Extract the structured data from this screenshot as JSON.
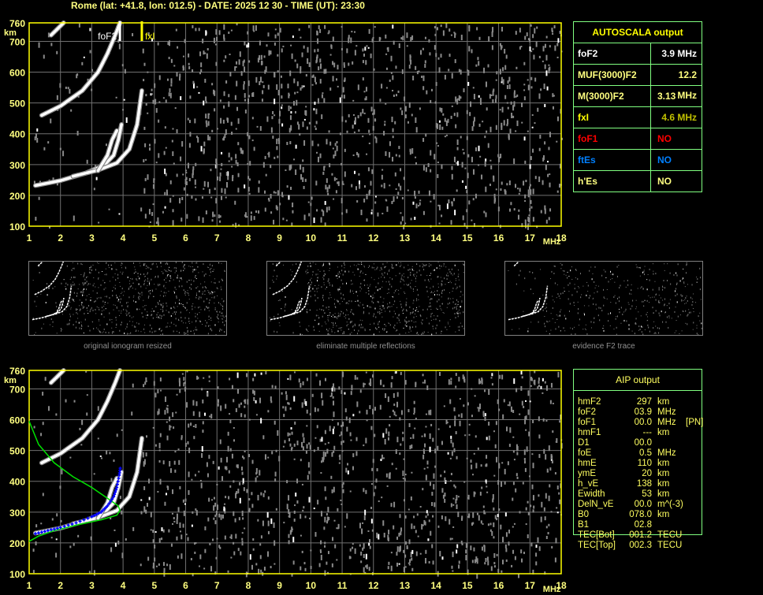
{
  "header": {
    "title": "Rome (lat: +41.8, lon: 012.5) - DATE: 2025 12 30 - TIME (UT): 23:30"
  },
  "autoscala": {
    "title": "AUTOSCALA output",
    "rows": [
      {
        "label": "foF2",
        "value": "3.9 MHz",
        "label_color": "#ffffff",
        "value_color": "#ffffff"
      },
      {
        "label": "MUF(3000)F2",
        "value": "12.2 MHz",
        "label_color": "#ffff80",
        "value_color": "#ffff80"
      },
      {
        "label": "M(3000)F2",
        "value": "3.13",
        "label_color": "#ffff80",
        "value_color": "#ffff80"
      },
      {
        "label": "fxI",
        "value": "4.6 MHz",
        "label_color": "#ffff00",
        "value_color": "#c0c000"
      },
      {
        "label": "foF1",
        "value": "NO",
        "label_color": "#ff0000",
        "value_color": "#ff0000"
      },
      {
        "label": "ftEs",
        "value": "NO",
        "label_color": "#0080ff",
        "value_color": "#0080ff"
      },
      {
        "label": "h'Es",
        "value": "NO",
        "label_color": "#ffff80",
        "value_color": "#ffff80"
      }
    ]
  },
  "aip": {
    "title": "AIP output",
    "rows": [
      {
        "name": "hmF2",
        "value": "297",
        "unit": "km",
        "extra": ""
      },
      {
        "name": "foF2",
        "value": "03.9",
        "unit": "MHz",
        "extra": ""
      },
      {
        "name": "foF1",
        "value": "00.0",
        "unit": "MHz",
        "extra": "[PN]"
      },
      {
        "name": "hmF1",
        "value": "---",
        "unit": "km",
        "extra": ""
      },
      {
        "name": "D1",
        "value": "00.0",
        "unit": "",
        "extra": ""
      },
      {
        "name": "foE",
        "value": "0.5",
        "unit": "MHz",
        "extra": ""
      },
      {
        "name": "hmE",
        "value": "110",
        "unit": "km",
        "extra": ""
      },
      {
        "name": "ymE",
        "value": "20",
        "unit": "km",
        "extra": ""
      },
      {
        "name": "h_vE",
        "value": "138",
        "unit": "km",
        "extra": ""
      },
      {
        "name": "Ewidth",
        "value": "53",
        "unit": "km",
        "extra": ""
      },
      {
        "name": "DelN_vE",
        "value": "00.0",
        "unit": "m^(-3)",
        "extra": ""
      },
      {
        "name": "B0",
        "value": "078.0",
        "unit": "km",
        "extra": ""
      },
      {
        "name": "B1",
        "value": "02.8",
        "unit": "",
        "extra": ""
      },
      {
        "name": "TEC[Bot]",
        "value": "001.2",
        "unit": "TECU",
        "extra": ""
      },
      {
        "name": "TEC[Top]",
        "value": "002.3",
        "unit": "TECU",
        "extra": ""
      }
    ]
  },
  "thumbnails": [
    {
      "caption": "original ionogram resized"
    },
    {
      "caption": "eliminate multiple reflections"
    },
    {
      "caption": "evidence F2 trace"
    }
  ],
  "chart_data": [
    {
      "type": "scatter",
      "title": "",
      "xlabel": "MHz",
      "ylabel": "km",
      "xlim": [
        1,
        18
      ],
      "ylim": [
        100,
        760
      ],
      "xticks": [
        "1",
        "2",
        "3",
        "4",
        "5",
        "6",
        "7",
        "8",
        "9",
        "10",
        "11",
        "12",
        "13",
        "14",
        "15",
        "16",
        "17",
        "18"
      ],
      "yticks": [
        "100",
        "200",
        "300",
        "400",
        "500",
        "600",
        "700",
        "760"
      ],
      "grid": true,
      "markers": [
        {
          "label": "foF2",
          "freq": 3.9,
          "color": "#ffffff"
        },
        {
          "label": "fxI",
          "freq": 4.6,
          "color": "#ffff00"
        }
      ],
      "traces": [
        {
          "points": [
            [
              1.2,
              232
            ],
            [
              2,
              248
            ],
            [
              2.8,
              272
            ],
            [
              3.4,
              298
            ],
            [
              3.7,
              330
            ],
            [
              3.85,
              380
            ],
            [
              3.95,
              430
            ]
          ]
        },
        {
          "points": [
            [
              2.4,
              262
            ],
            [
              3.2,
              282
            ],
            [
              3.8,
              305
            ],
            [
              4.2,
              350
            ],
            [
              4.45,
              430
            ],
            [
              4.6,
              540
            ]
          ]
        },
        {
          "points": [
            [
              1.4,
              460
            ],
            [
              2.0,
              490
            ],
            [
              2.7,
              540
            ],
            [
              3.2,
              600
            ],
            [
              3.5,
              660
            ],
            [
              3.75,
              720
            ],
            [
              3.9,
              760
            ]
          ]
        },
        {
          "points": [
            [
              3.2,
              280
            ],
            [
              3.5,
              330
            ],
            [
              3.65,
              380
            ],
            [
              3.8,
              410
            ]
          ]
        },
        {
          "points": [
            [
              1.7,
              720
            ],
            [
              2.1,
              760
            ]
          ]
        }
      ]
    },
    {
      "type": "scatter",
      "title": "",
      "xlabel": "MHz",
      "ylabel": "km",
      "xlim": [
        1,
        18
      ],
      "ylim": [
        100,
        760
      ],
      "xticks": [
        "1",
        "2",
        "3",
        "4",
        "5",
        "6",
        "7",
        "8",
        "9",
        "10",
        "11",
        "12",
        "13",
        "14",
        "15",
        "16",
        "17",
        "18"
      ],
      "yticks": [
        "100",
        "200",
        "300",
        "400",
        "500",
        "600",
        "700",
        "760"
      ],
      "grid": true,
      "profile_color": "#00e000",
      "fit_color": "#0000ff",
      "profile": [
        [
          1.0,
          595
        ],
        [
          1.3,
          520
        ],
        [
          1.8,
          460
        ],
        [
          2.4,
          415
        ],
        [
          3.0,
          380
        ],
        [
          3.5,
          345
        ],
        [
          3.85,
          320
        ],
        [
          3.9,
          305
        ],
        [
          3.8,
          290
        ],
        [
          3.3,
          275
        ],
        [
          2.6,
          260
        ],
        [
          1.8,
          240
        ],
        [
          1.3,
          222
        ],
        [
          1.0,
          205
        ]
      ],
      "fit": [
        [
          1.2,
          230
        ],
        [
          1.6,
          240
        ],
        [
          2.0,
          250
        ],
        [
          2.5,
          265
        ],
        [
          3.0,
          285
        ],
        [
          3.3,
          300
        ],
        [
          3.5,
          320
        ],
        [
          3.7,
          350
        ],
        [
          3.8,
          380
        ],
        [
          3.88,
          420
        ],
        [
          3.92,
          450
        ]
      ]
    }
  ]
}
